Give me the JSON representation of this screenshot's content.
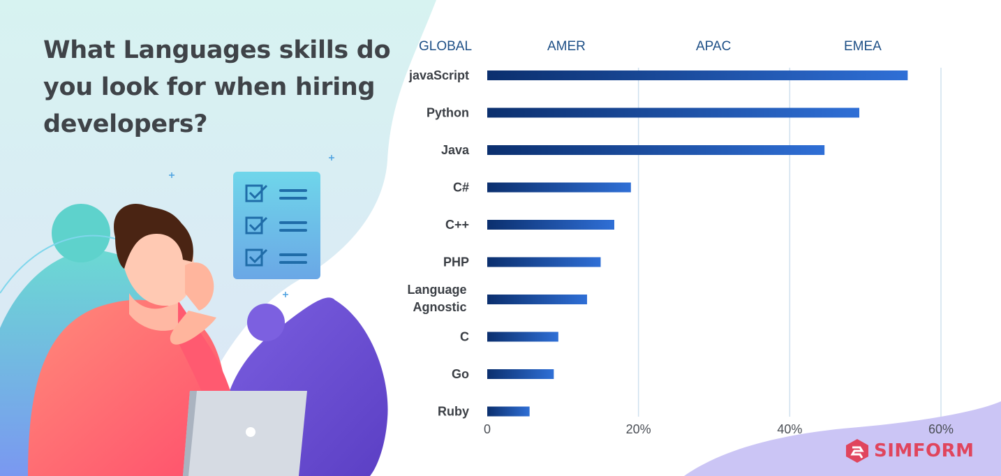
{
  "headline": "What Languages skills do you look for when hiring developers?",
  "region_tabs": [
    "GLOBAL",
    "AMER",
    "APAC",
    "EMEA"
  ],
  "brand": {
    "name": "SIMFORM"
  },
  "colors": {
    "bar_start": "#0b2f6e",
    "bar_end": "#2f6fd6",
    "headline": "#3f4348",
    "brand": "#e0455d"
  },
  "chart_data": {
    "type": "bar",
    "orientation": "horizontal",
    "categories": [
      "javaScript",
      "Python",
      "Java",
      "C#",
      "C++",
      "PHP",
      "Language Agnostic",
      "C",
      "Go",
      "Ruby"
    ],
    "values": [
      55.6,
      49.2,
      44.6,
      19.0,
      16.8,
      15.0,
      13.2,
      9.4,
      8.8,
      5.6
    ],
    "xlim": [
      0,
      60
    ],
    "xticks": [
      "0",
      "20%",
      "40%",
      "60%"
    ],
    "grid": true,
    "title": "",
    "xlabel": "",
    "ylabel": ""
  }
}
